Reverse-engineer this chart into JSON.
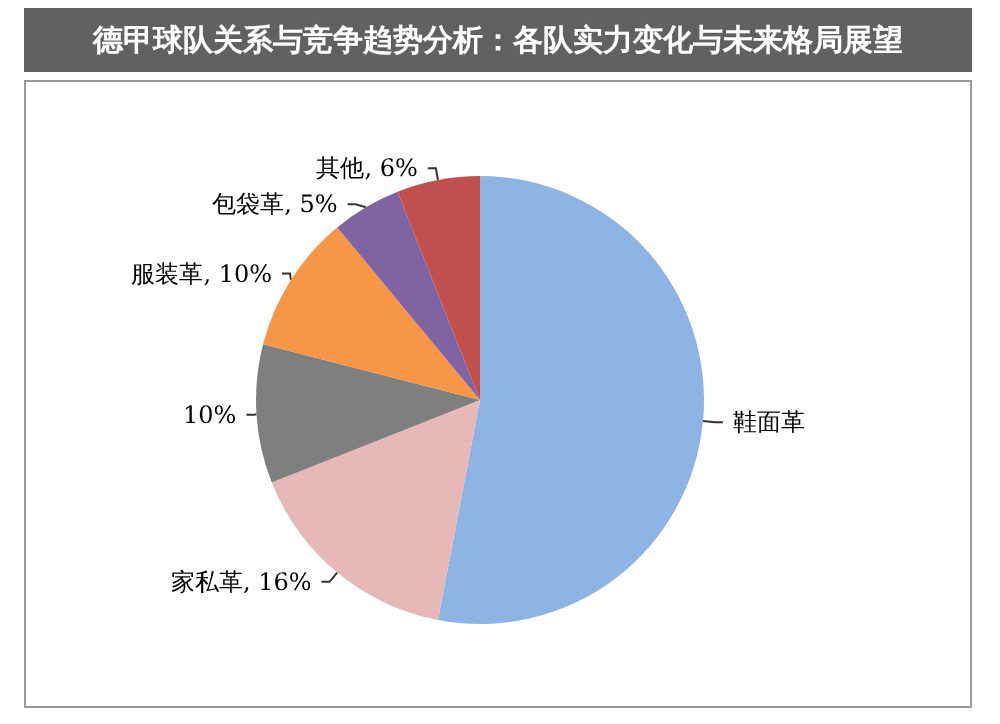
{
  "chart_data": {
    "type": "pie",
    "title": "德甲球队关系与竞争趋势分析：各队实力变化与未来格局展望",
    "categories": [
      "鞋面革",
      "家私革",
      null,
      "服装革",
      "包袋革",
      "其他"
    ],
    "values": [
      53,
      16,
      10,
      10,
      5,
      6
    ],
    "value_labels": [
      null,
      "16%",
      "10%",
      "10%",
      "5%",
      "6%"
    ],
    "colors": [
      "#8db4e2",
      "#e6b9b8",
      "#7f7f7f",
      "#f79646",
      "#8064a2",
      "#c0504d"
    ]
  }
}
